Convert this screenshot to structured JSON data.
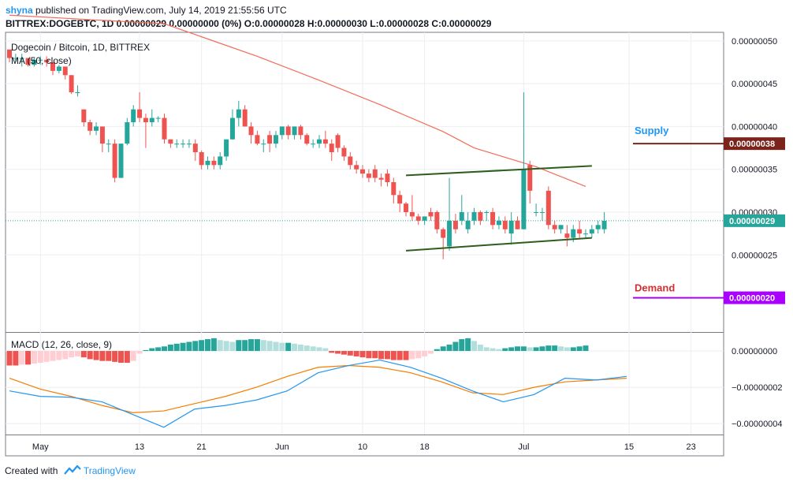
{
  "header": {
    "author": "shyna",
    "published": "published on TradingView.com, July 14, 2019 21:55:56 UTC",
    "ohlc_line": "BITTREX:DOGEBTC, 1D  0.00000029 0.00000000 (0%) O:0.00000028 H:0.00000030 L:0.00000028 C:0.00000029"
  },
  "legend": {
    "pair": "Dogecoin / Bitcoin, 1D, BITTREX",
    "ma": "MA (50, close)"
  },
  "annotations": {
    "supply": "Supply",
    "demand": "Demand",
    "supply_price": "0.00000038",
    "demand_price": "0.00000020",
    "last_price": "0.00000029"
  },
  "footer": {
    "created_with": "Created with",
    "brand": "TradingView"
  },
  "colors": {
    "up": "#26a69a",
    "down": "#ef5350",
    "ma": "#f26c58",
    "macd": "#2196f3",
    "signal": "#f57c00",
    "channel": "#2e5e1e",
    "supply": "#7b241c",
    "demand": "#aa00ff",
    "supply_text": "#2196f3",
    "demand_text": "#d32f2f",
    "price_tag": "#26a69a"
  },
  "chart_data": [
    {
      "type": "candlestick",
      "title": "Dogecoin / Bitcoin, 1D, BITTREX",
      "y_ticks": [
        "0.00000050",
        "0.00000045",
        "0.00000040",
        "0.00000035",
        "0.00000030",
        "0.00000025"
      ],
      "ylim": [
        1.6e-07,
        5.1e-07
      ],
      "x_ticks": [
        "May",
        "13",
        "21",
        "Jun",
        "10",
        "18",
        "Jul",
        "15",
        "23"
      ],
      "ohlc": [
        [
          4.9e-07,
          4.9e-07,
          4.75e-07,
          4.8e-07
        ],
        [
          4.8e-07,
          4.85e-07,
          4.75e-07,
          4.8e-07
        ],
        [
          4.8e-07,
          4.85e-07,
          4.7e-07,
          4.8e-07
        ],
        [
          4.8e-07,
          4.8e-07,
          4.7e-07,
          4.72e-07
        ],
        [
          4.72e-07,
          4.8e-07,
          4.7e-07,
          4.78e-07
        ],
        [
          4.78e-07,
          4.82e-07,
          4.72e-07,
          4.78e-07
        ],
        [
          4.78e-07,
          4.82e-07,
          4.7e-07,
          4.75e-07
        ],
        [
          4.75e-07,
          4.75e-07,
          4.6e-07,
          4.65e-07
        ],
        [
          4.65e-07,
          4.72e-07,
          4.62e-07,
          4.7e-07
        ],
        [
          4.7e-07,
          4.7e-07,
          4.55e-07,
          4.6e-07
        ],
        [
          4.6e-07,
          4.6e-07,
          4.38e-07,
          4.4e-07
        ],
        [
          4.4e-07,
          4.48e-07,
          4.35e-07,
          4.4e-07
        ],
        [
          4.2e-07,
          4.2e-07,
          4e-07,
          4.05e-07
        ],
        [
          4.05e-07,
          4.08e-07,
          3.9e-07,
          3.95e-07
        ],
        [
          3.95e-07,
          4.05e-07,
          3.9e-07,
          4e-07
        ],
        [
          4e-07,
          4e-07,
          3.7e-07,
          3.8e-07
        ],
        [
          3.8e-07,
          3.85e-07,
          3.7e-07,
          3.8e-07
        ],
        [
          3.8e-07,
          3.85e-07,
          3.35e-07,
          3.4e-07
        ],
        [
          3.4e-07,
          3.8e-07,
          3.4e-07,
          3.8e-07
        ],
        [
          3.8e-07,
          4.1e-07,
          3.78e-07,
          4.05e-07
        ],
        [
          4.05e-07,
          4.25e-07,
          4e-07,
          4.2e-07
        ],
        [
          4.2e-07,
          4.4e-07,
          4.05e-07,
          4.1e-07
        ],
        [
          4.1e-07,
          4.15e-07,
          3.75e-07,
          4.05e-07
        ],
        [
          4.05e-07,
          4.2e-07,
          4e-07,
          4.1e-07
        ],
        [
          4.1e-07,
          4.12e-07,
          4.05e-07,
          4.1e-07
        ],
        [
          4.1e-07,
          4.15e-07,
          3.8e-07,
          3.85e-07
        ],
        [
          3.85e-07,
          3.85e-07,
          3.75e-07,
          3.8e-07
        ],
        [
          3.8e-07,
          3.85e-07,
          3.75e-07,
          3.8e-07
        ],
        [
          3.8e-07,
          3.85e-07,
          3.75e-07,
          3.8e-07
        ],
        [
          3.8e-07,
          3.85e-07,
          3.75e-07,
          3.8e-07
        ],
        [
          3.8e-07,
          3.85e-07,
          3.6e-07,
          3.7e-07
        ],
        [
          3.7e-07,
          3.72e-07,
          3.5e-07,
          3.55e-07
        ],
        [
          3.55e-07,
          3.65e-07,
          3.5e-07,
          3.6e-07
        ],
        [
          3.6e-07,
          3.65e-07,
          3.5e-07,
          3.55e-07
        ],
        [
          3.55e-07,
          3.7e-07,
          3.5e-07,
          3.65e-07
        ],
        [
          3.65e-07,
          3.85e-07,
          3.6e-07,
          3.85e-07
        ],
        [
          3.85e-07,
          4.2e-07,
          3.85e-07,
          4.1e-07
        ],
        [
          4.1e-07,
          4.3e-07,
          4e-07,
          4.2e-07
        ],
        [
          4.2e-07,
          4.25e-07,
          4e-07,
          4e-07
        ],
        [
          4e-07,
          4.05e-07,
          3.8e-07,
          3.9e-07
        ],
        [
          3.9e-07,
          3.95e-07,
          3.78e-07,
          3.8e-07
        ],
        [
          3.8e-07,
          3.85e-07,
          3.7e-07,
          3.8e-07
        ],
        [
          3.9e-07,
          3.95e-07,
          3.7e-07,
          3.8e-07
        ],
        [
          3.8e-07,
          3.95e-07,
          3.75e-07,
          3.9e-07
        ],
        [
          3.9e-07,
          4e-07,
          3.85e-07,
          4e-07
        ],
        [
          4e-07,
          4.02e-07,
          3.85e-07,
          3.9e-07
        ],
        [
          3.9e-07,
          4e-07,
          3.85e-07,
          4e-07
        ],
        [
          4e-07,
          4.02e-07,
          3.85e-07,
          3.9e-07
        ],
        [
          3.9e-07,
          3.92e-07,
          3.78e-07,
          3.8e-07
        ],
        [
          3.8e-07,
          3.85e-07,
          3.75e-07,
          3.8e-07
        ],
        [
          3.8e-07,
          3.9e-07,
          3.75e-07,
          3.85e-07
        ],
        [
          3.85e-07,
          3.95e-07,
          3.75e-07,
          3.8e-07
        ],
        [
          3.8e-07,
          3.85e-07,
          3.6e-07,
          3.7e-07
        ],
        [
          3.9e-07,
          3.92e-07,
          3.7e-07,
          3.75e-07
        ],
        [
          3.75e-07,
          3.78e-07,
          3.6e-07,
          3.65e-07
        ],
        [
          3.65e-07,
          3.7e-07,
          3.5e-07,
          3.55e-07
        ],
        [
          3.55e-07,
          3.6e-07,
          3.45e-07,
          3.5e-07
        ],
        [
          3.5e-07,
          3.55e-07,
          3.4e-07,
          3.45e-07
        ],
        [
          3.45e-07,
          3.5e-07,
          3.35e-07,
          3.4e-07
        ],
        [
          3.5e-07,
          3.55e-07,
          3.35e-07,
          3.4e-07
        ],
        [
          3.4e-07,
          3.45e-07,
          3.3e-07,
          3.38e-07
        ],
        [
          3.45e-07,
          3.5e-07,
          3.3e-07,
          3.35e-07
        ],
        [
          3.35e-07,
          3.4e-07,
          3.1e-07,
          3.2e-07
        ],
        [
          3.2e-07,
          3.25e-07,
          3e-07,
          3.1e-07
        ],
        [
          3.1e-07,
          3.12e-07,
          2.95e-07,
          3e-07
        ],
        [
          3e-07,
          3.2e-07,
          2.9e-07,
          2.95e-07
        ],
        [
          2.95e-07,
          2.98e-07,
          2.85e-07,
          2.9e-07
        ],
        [
          2.9e-07,
          2.95e-07,
          2.85e-07,
          2.95e-07
        ],
        [
          3e-07,
          3.05e-07,
          2.9e-07,
          2.95e-07
        ],
        [
          3e-07,
          3.02e-07,
          2.75e-07,
          2.8e-07
        ],
        [
          2.8e-07,
          2.82e-07,
          2.45e-07,
          2.7e-07
        ],
        [
          2.6e-07,
          3.4e-07,
          2.55e-07,
          2.9e-07
        ],
        [
          2.9e-07,
          2.98e-07,
          2.75e-07,
          2.8e-07
        ],
        [
          2.9e-07,
          3.2e-07,
          2.85e-07,
          3e-07
        ],
        [
          2.8e-07,
          3e-07,
          2.75e-07,
          2.9e-07
        ],
        [
          2.9e-07,
          3.05e-07,
          2.85e-07,
          3e-07
        ],
        [
          3e-07,
          3.02e-07,
          2.85e-07,
          2.9e-07
        ],
        [
          3e-07,
          3.02e-07,
          2.9e-07,
          3e-07
        ],
        [
          3e-07,
          3.05e-07,
          2.8e-07,
          2.85e-07
        ],
        [
          2.85e-07,
          2.95e-07,
          2.8e-07,
          2.9e-07
        ],
        [
          2.9e-07,
          2.95e-07,
          2.75e-07,
          2.8e-07
        ],
        [
          2.75e-07,
          3e-07,
          2.62e-07,
          2.9e-07
        ],
        [
          2.9e-07,
          2.95e-07,
          2.8e-07,
          2.8e-07
        ],
        [
          2.8e-07,
          4.4e-07,
          2.8e-07,
          3.5e-07
        ],
        [
          3.55e-07,
          3.6e-07,
          3.1e-07,
          3.25e-07
        ],
        [
          3e-07,
          3.1e-07,
          2.95e-07,
          3e-07
        ],
        [
          3e-07,
          3.05e-07,
          2.9e-07,
          3e-07
        ],
        [
          3.25e-07,
          3.3e-07,
          2.8e-07,
          2.85e-07
        ],
        [
          2.85e-07,
          2.9e-07,
          2.75e-07,
          2.8e-07
        ],
        [
          2.8e-07,
          2.85e-07,
          2.75e-07,
          2.85e-07
        ],
        [
          2.75e-07,
          2.85e-07,
          2.6e-07,
          2.7e-07
        ],
        [
          2.7e-07,
          2.85e-07,
          2.65e-07,
          2.8e-07
        ],
        [
          2.8e-07,
          2.9e-07,
          2.7e-07,
          2.75e-07
        ],
        [
          2.75e-07,
          2.8e-07,
          2.7e-07,
          2.75e-07
        ],
        [
          2.75e-07,
          2.85e-07,
          2.7e-07,
          2.8e-07
        ],
        [
          2.8e-07,
          2.9e-07,
          2.75e-07,
          2.85e-07
        ],
        [
          2.8e-07,
          3e-07,
          2.75e-07,
          2.9e-07
        ]
      ],
      "ma50": [
        [
          0,
          5.3e-07
        ],
        [
          25,
          5.2e-07
        ],
        [
          40,
          4.82e-07
        ],
        [
          50,
          4.54e-07
        ],
        [
          60,
          4.25e-07
        ],
        [
          70,
          3.94e-07
        ],
        [
          75,
          3.75e-07
        ],
        [
          85,
          3.53e-07
        ],
        [
          93,
          3.3e-07
        ]
      ],
      "channel_upper": [
        [
          64,
          3.43e-07
        ],
        [
          94,
          3.54e-07
        ]
      ],
      "channel_lower": [
        [
          64,
          2.55e-07
        ],
        [
          94,
          2.7e-07
        ]
      ],
      "supply_level": 3.8e-07,
      "demand_level": 2e-07,
      "last_price": 2.9e-07
    },
    {
      "type": "macd",
      "title": "MACD (12, 26, close, 9)",
      "y_ticks": [
        "0.00000000",
        "−0.00000002",
        "−0.00000004"
      ],
      "ylim": [
        -4.6e-08,
        1e-08
      ],
      "histogram": [
        -8e-09,
        -8e-09,
        -7.5e-09,
        -7.5e-09,
        -7e-09,
        -6.5e-09,
        -6e-09,
        -5.5e-09,
        -5e-09,
        -4.5e-09,
        -3.5e-09,
        -3e-09,
        -3.5e-09,
        -4.5e-09,
        -5e-09,
        -5.5e-09,
        -5.5e-09,
        -6e-09,
        -6.5e-09,
        -6.5e-09,
        -5.5e-09,
        -1.5e-09,
        5e-10,
        1.5e-09,
        2e-09,
        2.5e-09,
        3.5e-09,
        4e-09,
        4.5e-09,
        5e-09,
        5.5e-09,
        6e-09,
        6.5e-09,
        7e-09,
        6e-09,
        5.5e-09,
        5e-09,
        6e-09,
        6e-09,
        6.5e-09,
        6.5e-09,
        6e-09,
        5.5e-09,
        5e-09,
        4.5e-09,
        4.5e-09,
        4e-09,
        3.5e-09,
        3e-09,
        2.5e-09,
        2e-09,
        1.5e-09,
        -1e-09,
        -1.5e-09,
        -2e-09,
        -2.5e-09,
        -3e-09,
        -3.5e-09,
        -4e-09,
        -4e-09,
        -4.5e-09,
        -4.5e-09,
        -5e-09,
        -5e-09,
        -5e-09,
        -4.5e-09,
        -4e-09,
        -3e-09,
        -1.5e-09,
        1e-09,
        2.5e-09,
        3.5e-09,
        5e-09,
        6.5e-09,
        7e-09,
        5.5e-09,
        3.5e-09,
        2e-09,
        1.5e-09,
        1e-09,
        1.5e-09,
        2e-09,
        2.5e-09,
        2.5e-09,
        2e-09,
        2e-09,
        2.5e-09,
        3e-09,
        3e-09,
        2.5e-09,
        2e-09,
        2e-09,
        2.5e-09,
        3e-09
      ],
      "macd": [
        [
          0,
          -2.2e-08
        ],
        [
          5,
          -2.5e-08
        ],
        [
          10,
          -2.55e-08
        ],
        [
          15,
          -2.8e-08
        ],
        [
          20,
          -3.5e-08
        ],
        [
          25,
          -4.2e-08
        ],
        [
          30,
          -3.2e-08
        ],
        [
          35,
          -3e-08
        ],
        [
          40,
          -2.7e-08
        ],
        [
          45,
          -2.2e-08
        ],
        [
          50,
          -1.2e-08
        ],
        [
          55,
          -8e-09
        ],
        [
          60,
          -5e-09
        ],
        [
          65,
          -9e-09
        ],
        [
          70,
          -1.5e-08
        ],
        [
          75,
          -2.2e-08
        ],
        [
          80,
          -2.8e-08
        ],
        [
          85,
          -2.4e-08
        ],
        [
          90,
          -1.5e-08
        ],
        [
          95,
          -1.6e-08
        ],
        [
          100,
          -1.4e-08
        ]
      ],
      "signal": [
        [
          0,
          -1.5e-08
        ],
        [
          5,
          -2.1e-08
        ],
        [
          10,
          -2.5e-08
        ],
        [
          15,
          -3e-08
        ],
        [
          20,
          -3.4e-08
        ],
        [
          25,
          -3.3e-08
        ],
        [
          30,
          -2.9e-08
        ],
        [
          35,
          -2.5e-08
        ],
        [
          40,
          -2e-08
        ],
        [
          45,
          -1.4e-08
        ],
        [
          50,
          -9e-09
        ],
        [
          55,
          -8e-09
        ],
        [
          60,
          -9e-09
        ],
        [
          65,
          -1.2e-08
        ],
        [
          70,
          -1.7e-08
        ],
        [
          75,
          -2.3e-08
        ],
        [
          80,
          -2.4e-08
        ],
        [
          85,
          -2e-08
        ],
        [
          90,
          -1.7e-08
        ],
        [
          95,
          -1.6e-08
        ],
        [
          100,
          -1.5e-08
        ]
      ]
    }
  ]
}
